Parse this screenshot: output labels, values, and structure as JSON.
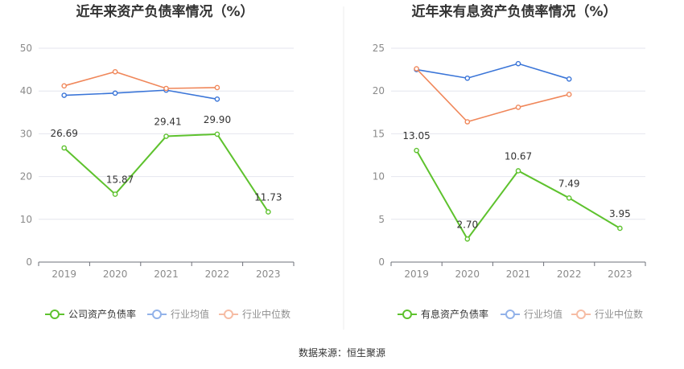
{
  "source_text": "数据来源：恒生聚源",
  "chart_data": [
    {
      "type": "line",
      "title": "近年来资产负债率情况（%）",
      "categories": [
        "2019",
        "2020",
        "2021",
        "2022",
        "2023"
      ],
      "ylim": [
        0,
        50
      ],
      "yticks": [
        0,
        10,
        20,
        30,
        40,
        50
      ],
      "grid": true,
      "legend_position": "bottom",
      "series": [
        {
          "name": "公司资产负债率",
          "color": "#5ec22e",
          "values": [
            26.69,
            15.87,
            29.41,
            29.9,
            11.73
          ],
          "labels": [
            "26.69",
            "15.87",
            "29.41",
            "29.90",
            "11.73"
          ]
        },
        {
          "name": "行业均值",
          "color": "#3a75d8",
          "values": [
            39.0,
            39.5,
            40.2,
            38.1,
            null
          ]
        },
        {
          "name": "行业中位数",
          "color": "#f0875a",
          "values": [
            41.2,
            44.5,
            40.6,
            40.8,
            null
          ]
        }
      ]
    },
    {
      "type": "line",
      "title": "近年来有息资产负债率情况（%）",
      "categories": [
        "2019",
        "2020",
        "2021",
        "2022",
        "2023"
      ],
      "ylim": [
        0,
        25
      ],
      "yticks": [
        0,
        5,
        10,
        15,
        20,
        25
      ],
      "grid": true,
      "legend_position": "bottom",
      "series": [
        {
          "name": "有息资产负债率",
          "color": "#5ec22e",
          "values": [
            13.05,
            2.7,
            10.67,
            7.49,
            3.95
          ],
          "labels": [
            "13.05",
            "2.70",
            "10.67",
            "7.49",
            "3.95"
          ]
        },
        {
          "name": "行业均值",
          "color": "#3a75d8",
          "values": [
            22.5,
            21.5,
            23.2,
            21.4,
            null
          ]
        },
        {
          "name": "行业中位数",
          "color": "#f0875a",
          "values": [
            22.6,
            16.4,
            18.1,
            19.6,
            null
          ]
        }
      ]
    }
  ]
}
